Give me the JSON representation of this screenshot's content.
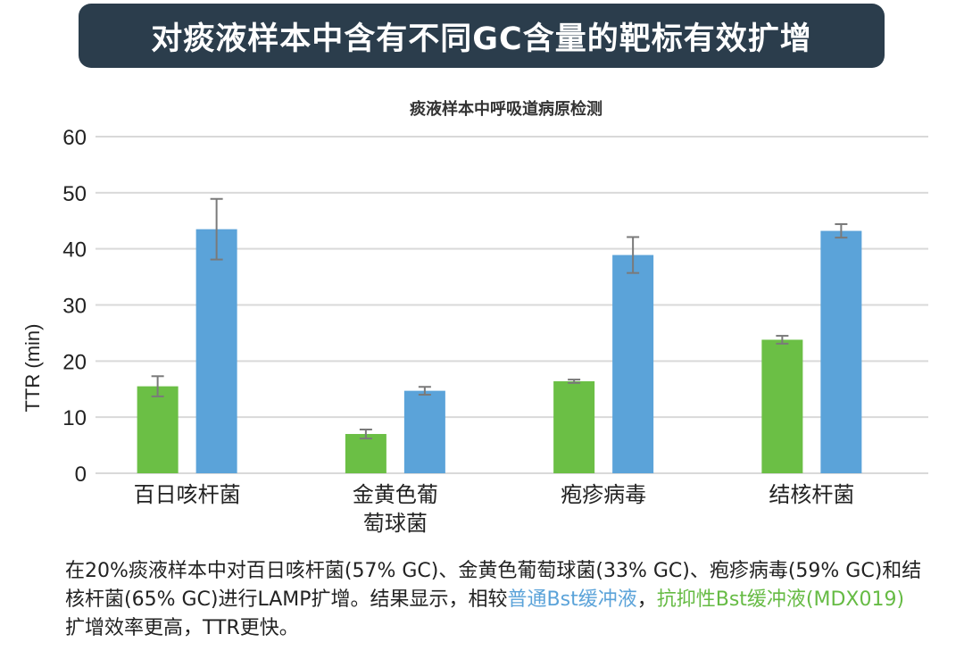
{
  "header": {
    "title": "对痰液样本中含有不同GC含量的靶标有效扩增"
  },
  "colors": {
    "green": "#6bbf45",
    "blue": "#5ba3d9",
    "banner": "#2b3d4c",
    "grid": "#d9d9d9",
    "error_bar": "#7a7a7a"
  },
  "chart_data": {
    "type": "bar",
    "title": "痰液样本中呼吸道病原检测",
    "xlabel": "",
    "ylabel": "TTR (min)",
    "ylim": [
      0,
      60
    ],
    "yticks": [
      0,
      10,
      20,
      30,
      40,
      50,
      60
    ],
    "grid": true,
    "legend": "none",
    "categories": [
      [
        "百日咳杆菌"
      ],
      [
        "金黄色葡",
        "萄球菌"
      ],
      [
        "疱疹病毒"
      ],
      [
        "结核杆菌"
      ]
    ],
    "series": [
      {
        "color": "#6bbf45",
        "values": [
          15.5,
          7.0,
          16.4,
          23.8
        ],
        "errors": [
          1.8,
          0.8,
          0.3,
          0.7
        ]
      },
      {
        "color": "#5ba3d9",
        "values": [
          43.5,
          14.7,
          38.9,
          43.2
        ],
        "errors": [
          5.4,
          0.7,
          3.2,
          1.2
        ]
      }
    ]
  },
  "caption": {
    "part1": "在20%痰液样本中对百日咳杆菌(57% GC)、金黄色葡萄球菌(33% GC)、疱疹病毒(59% GC)和结核杆菌(65% GC)进行LAMP扩增。结果显示，相较",
    "blue_text": "普通Bst缓冲液",
    "sep": "，",
    "green_text": "抗抑性Bst缓冲液(MDX019)",
    "part2": "扩增效率更高，TTR更快。"
  }
}
